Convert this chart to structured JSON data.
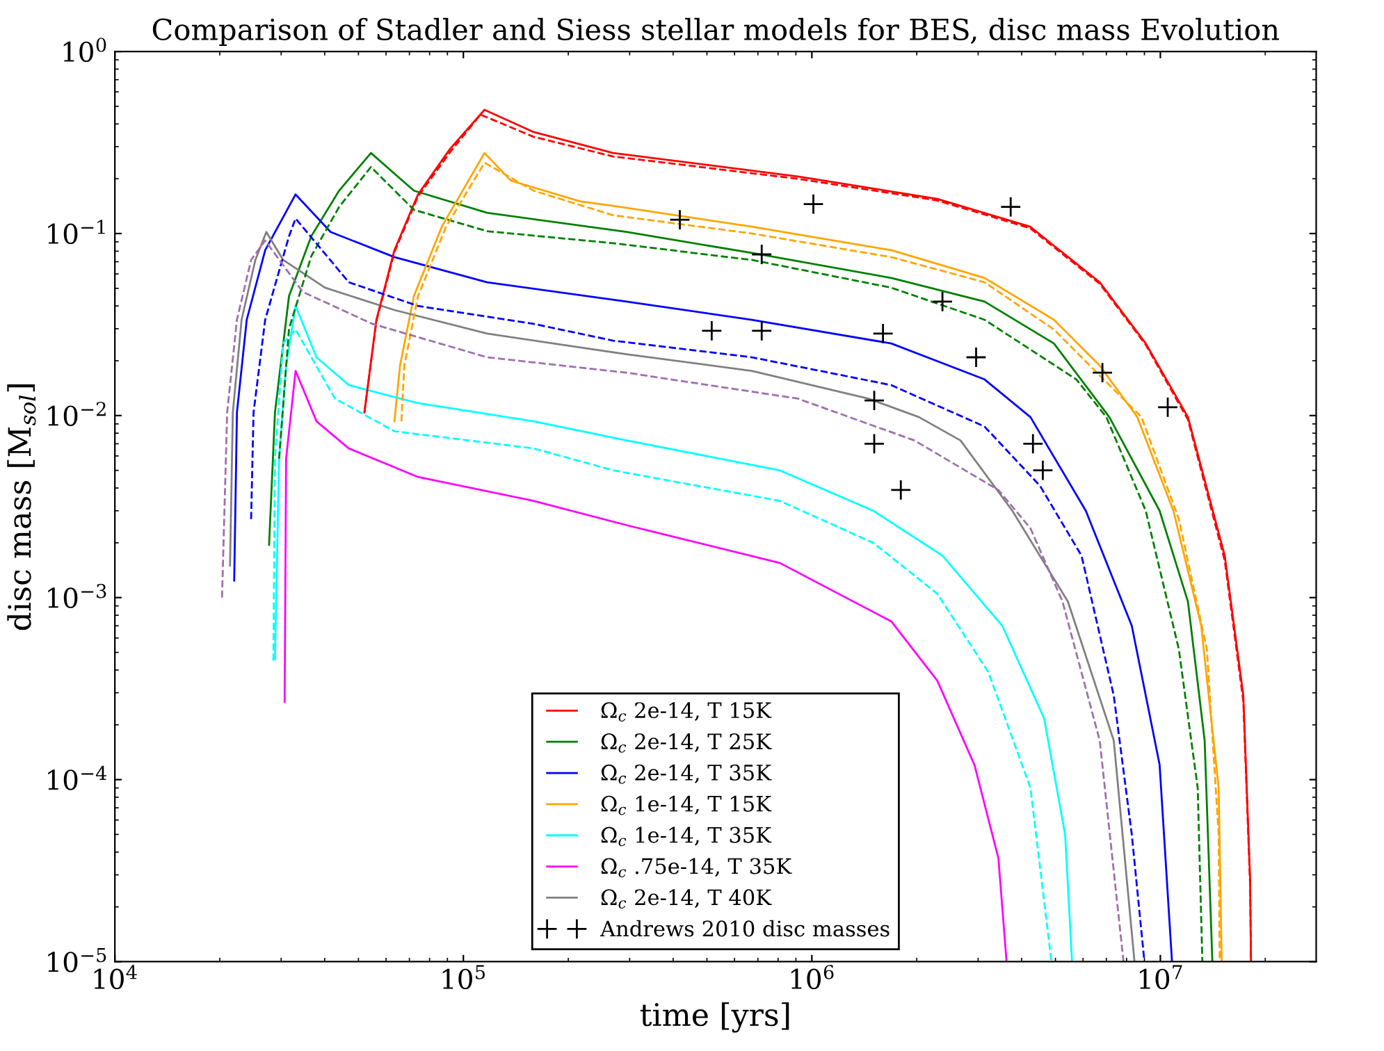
{
  "chart_data": {
    "type": "line",
    "title": "Comparison of Stadler and Siess stellar models for BES, disc mass Evolution",
    "xlabel": "time [yrs]",
    "ylabel": "disc mass [M$_{sol}$]",
    "log": "xy",
    "xlim": [
      10000,
      28000000
    ],
    "ylim": [
      1e-05,
      1
    ],
    "xticks": [
      {
        "value": 10000,
        "label": "10$^{4}$"
      },
      {
        "value": 100000,
        "label": "10$^{5}$"
      },
      {
        "value": 1000000,
        "label": "10$^{6}$"
      },
      {
        "value": 10000000,
        "label": "10$^{7}$"
      }
    ],
    "yticks": [
      {
        "value": 1e-05,
        "label": "10$^{−5}$"
      },
      {
        "value": 0.0001,
        "label": "10$^{−4}$"
      },
      {
        "value": 0.001,
        "label": "10$^{−3}$"
      },
      {
        "value": 0.01,
        "label": "10$^{−2}$"
      },
      {
        "value": 0.1,
        "label": "10$^{−1}$"
      },
      {
        "value": 1,
        "label": "10$^{0}$"
      }
    ],
    "legend": "bottom",
    "marker": "none",
    "line_style": "solid",
    "series": [
      {
        "name": "Ω$_{c}$ 2e-14, T 15K",
        "color": "#ff0000",
        "x": [
          52000,
          56300,
          63400,
          74100,
          91600,
          115000,
          159000,
          269000,
          910000,
          2290000,
          4230000,
          6700000,
          9080000,
          12000000,
          15300000,
          17300000,
          18100000,
          18200000
        ],
        "values": [
          0.0104,
          0.0336,
          0.081,
          0.164,
          0.292,
          0.478,
          0.361,
          0.277,
          0.206,
          0.155,
          0.109,
          0.054,
          0.0249,
          0.0098,
          0.0017,
          0.00029,
          2.8e-05,
          1e-05
        ]
      },
      {
        "name": "Ω$_{c}$ 2e-14, T 25K",
        "color": "#008000",
        "x": [
          27700,
          28800,
          31600,
          36600,
          44000,
          54300,
          72100,
          117000,
          294000,
          673000,
          1690000,
          3130000,
          4950000,
          7140000,
          9950000,
          12000000,
          13400000,
          14100000
        ],
        "values": [
          0.00195,
          0.0104,
          0.0453,
          0.0966,
          0.172,
          0.277,
          0.172,
          0.13,
          0.102,
          0.0782,
          0.057,
          0.0423,
          0.0249,
          0.0098,
          0.003,
          0.00095,
          0.000164,
          1e-05
        ]
      },
      {
        "name": "Ω$_{c}$ 2e-14, T 35K",
        "color": "#0000ff",
        "x": [
          22000,
          22400,
          23900,
          27000,
          33000,
          41600,
          63400,
          117000,
          294000,
          673000,
          1690000,
          3130000,
          4240000,
          6110000,
          8280000,
          9950000,
          10800000
        ],
        "values": [
          0.00124,
          0.0104,
          0.0336,
          0.081,
          0.164,
          0.102,
          0.0742,
          0.054,
          0.0423,
          0.0336,
          0.0249,
          0.0158,
          0.0098,
          0.003,
          0.0007,
          0.000121,
          1e-05
        ]
      },
      {
        "name": "Ω$_{c}$ 1e-14, T 15K",
        "color": "#ffa500",
        "x": [
          63400,
          65800,
          72100,
          86700,
          115000,
          137000,
          217000,
          269000,
          673000,
          1690000,
          3130000,
          4950000,
          6700000,
          8590000,
          10900000,
          13100000,
          14700000,
          15000000
        ],
        "values": [
          0.0093,
          0.0188,
          0.0453,
          0.109,
          0.277,
          0.195,
          0.15,
          0.142,
          0.109,
          0.081,
          0.057,
          0.0336,
          0.0188,
          0.0098,
          0.003,
          0.0007,
          9e-05,
          1e-05
        ]
      },
      {
        "name": "Ω$_{c}$ 1e-14, T 35K",
        "color": "#00ffff",
        "x": [
          28800,
          29600,
          31000,
          33000,
          37900,
          46900,
          74100,
          159000,
          294000,
          809000,
          1500000,
          2370000,
          3520000,
          4640000,
          5330000,
          5580000
        ],
        "values": [
          0.00046,
          0.0058,
          0.0188,
          0.0401,
          0.0209,
          0.0147,
          0.0117,
          0.0093,
          0.0073,
          0.005,
          0.003,
          0.0017,
          0.0007,
          0.000217,
          5e-05,
          1e-05
        ]
      },
      {
        "name": "Ω$_{c}$ .75e-14, T 35K",
        "color": "#ff00ff",
        "x": [
          30700,
          31000,
          33000,
          37900,
          46900,
          74100,
          159000,
          294000,
          809000,
          1690000,
          2290000,
          2930000,
          3430000,
          3620000
        ],
        "values": [
          0.000267,
          0.0058,
          0.0176,
          0.0093,
          0.0066,
          0.0046,
          0.0034,
          0.0025,
          0.00155,
          0.00074,
          0.00035,
          0.00012,
          3.7e-05,
          1e-05
        ]
      },
      {
        "name": "Ω$_{c}$ 2e-14, T 40K",
        "color": "#808080",
        "x": [
          21400,
          21800,
          23100,
          25300,
          27200,
          30400,
          40100,
          63400,
          117000,
          294000,
          673000,
          1450000,
          2030000,
          2670000,
          3760000,
          5430000,
          7350000,
          8430000
        ],
        "values": [
          0.0015,
          0.0104,
          0.0336,
          0.0716,
          0.102,
          0.0716,
          0.0504,
          0.038,
          0.0282,
          0.0217,
          0.0176,
          0.0124,
          0.0098,
          0.0073,
          0.003,
          0.00095,
          0.000164,
          1e-05
        ]
      },
      {
        "color": "#ff0000",
        "line_style": "dashed",
        "x": [
          52000,
          56300,
          63400,
          74100,
          91600,
          112000,
          159000,
          269000,
          910000,
          2290000,
          4230000,
          6700000,
          9080000,
          12000000,
          15300000,
          17300000,
          18100000,
          18200000
        ],
        "values": [
          0.0104,
          0.033,
          0.079,
          0.16,
          0.28,
          0.45,
          0.34,
          0.265,
          0.2,
          0.152,
          0.107,
          0.053,
          0.0245,
          0.0095,
          0.0016,
          0.00027,
          2.6e-05,
          1e-05
        ]
      },
      {
        "color": "#008000",
        "line_style": "dashed",
        "x": [
          29600,
          31600,
          36600,
          44000,
          54300,
          72100,
          117000,
          269000,
          673000,
          1690000,
          3130000,
          5740000,
          7000000,
          9080000,
          11300000,
          12800000,
          13200000
        ],
        "values": [
          0.0058,
          0.03,
          0.075,
          0.14,
          0.232,
          0.135,
          0.103,
          0.0885,
          0.0716,
          0.0504,
          0.0336,
          0.0158,
          0.0098,
          0.003,
          0.00052,
          9e-05,
          1e-05
        ]
      },
      {
        "color": "#0000ff",
        "line_style": "dashed",
        "x": [
          24600,
          25000,
          27000,
          31600,
          33000,
          46900,
          74100,
          159000,
          269000,
          673000,
          1690000,
          3130000,
          4520000,
          5940000,
          7350000,
          8280000,
          9000000
        ],
        "values": [
          0.0027,
          0.0104,
          0.0336,
          0.0966,
          0.121,
          0.054,
          0.04,
          0.0319,
          0.0258,
          0.0209,
          0.0147,
          0.0087,
          0.0041,
          0.0017,
          0.00029,
          5e-05,
          1e-05
        ]
      },
      {
        "color": "#ffa500",
        "line_style": "dashed",
        "x": [
          66400,
          67700,
          74100,
          89200,
          115000,
          159000,
          269000,
          673000,
          1690000,
          3130000,
          4950000,
          6700000,
          8830000,
          11300000,
          13600000,
          14700000,
          14800000
        ],
        "values": [
          0.0093,
          0.0188,
          0.0453,
          0.109,
          0.245,
          0.172,
          0.126,
          0.1,
          0.0742,
          0.054,
          0.0297,
          0.0166,
          0.0098,
          0.0027,
          0.00052,
          5e-05,
          1e-05
        ]
      },
      {
        "color": "#00ffff",
        "line_style": "dashed",
        "x": [
          28500,
          28800,
          30400,
          33000,
          42800,
          63400,
          159000,
          269000,
          809000,
          1500000,
          2290000,
          3210000,
          4240000,
          4870000
        ],
        "values": [
          0.00045,
          0.0058,
          0.025,
          0.0297,
          0.0124,
          0.0082,
          0.0066,
          0.005,
          0.0034,
          0.002,
          0.00105,
          0.00039,
          9e-05,
          1e-05
        ]
      },
      {
        "color": "#9f6fb0",
        "line_style": "dashed",
        "x": [
          20300,
          21000,
          22400,
          24600,
          27000,
          34600,
          54800,
          117000,
          294000,
          910000,
          1970000,
          3430000,
          4240000,
          5240000,
          6700000,
          7840000
        ],
        "values": [
          0.001,
          0.0104,
          0.0336,
          0.0716,
          0.0916,
          0.0478,
          0.0319,
          0.0209,
          0.0172,
          0.0124,
          0.0073,
          0.0039,
          0.0024,
          0.00095,
          0.000164,
          1e-05
        ]
      },
      {
        "type": "scatter",
        "name": "Andrews 2010 disc masses",
        "color": "#000000",
        "marker": "cross",
        "x": [
          418000,
          1010000,
          3720000,
          718000,
          516000,
          718000,
          1600000,
          2370000,
          2960000,
          6820000,
          10500000,
          1510000,
          1510000,
          4310000,
          4600000,
          1800000
        ],
        "values": [
          0.119,
          0.145,
          0.14,
          0.0768,
          0.0292,
          0.0292,
          0.0282,
          0.0423,
          0.0209,
          0.0172,
          0.0111,
          0.0121,
          0.007,
          0.007,
          0.005,
          0.0039
        ]
      }
    ]
  }
}
